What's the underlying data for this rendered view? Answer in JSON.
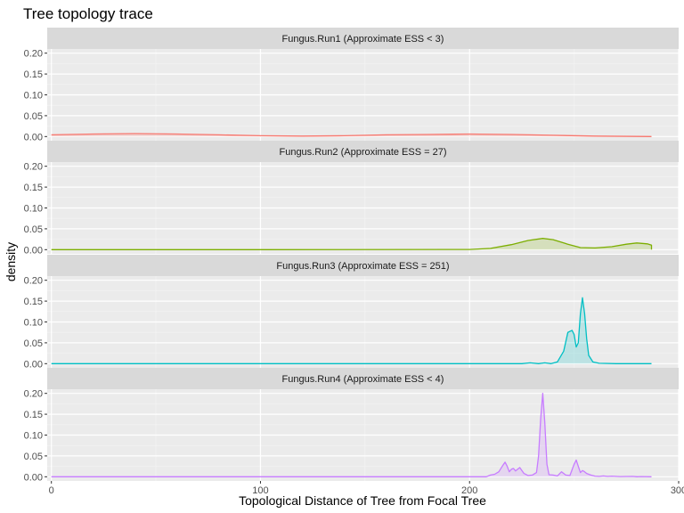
{
  "chart_data": {
    "type": "area",
    "title": "Tree topology trace",
    "xlabel": "Topological Distance of Tree from Focal Tree",
    "ylabel": "density",
    "xlim": [
      -2,
      300
    ],
    "ylim": [
      -0.01,
      0.21
    ],
    "x_ticks": [
      0,
      100,
      200,
      300
    ],
    "y_ticks": [
      0.0,
      0.05,
      0.1,
      0.15,
      0.2
    ],
    "y_tick_labels": [
      "0.00",
      "0.05",
      "0.10",
      "0.15",
      "0.20"
    ],
    "grid": true,
    "legend": "none",
    "panels": [
      {
        "name": "Fungus.Run1",
        "strip": "Fungus.Run1 (Approximate ESS < 3)",
        "color": "#F8766D",
        "fill": "rgba(248,118,109,0.2)",
        "x": [
          0,
          20,
          40,
          60,
          80,
          100,
          120,
          140,
          160,
          180,
          200,
          220,
          240,
          260,
          287
        ],
        "y": [
          0.004,
          0.006,
          0.007,
          0.006,
          0.004,
          0.002,
          0.001,
          0.002,
          0.004,
          0.005,
          0.006,
          0.005,
          0.003,
          0.001,
          0.0
        ]
      },
      {
        "name": "Fungus.Run2",
        "strip": "Fungus.Run2 (Approximate ESS = 27)",
        "color": "#7CAE00",
        "fill": "rgba(124,174,0,0.2)",
        "x": [
          0,
          100,
          200,
          210,
          220,
          228,
          235,
          240,
          247,
          253,
          260,
          268,
          275,
          280,
          285,
          287,
          287
        ],
        "y": [
          0.0,
          0.0,
          0.0005,
          0.003,
          0.012,
          0.022,
          0.027,
          0.024,
          0.013,
          0.005,
          0.004,
          0.007,
          0.013,
          0.016,
          0.014,
          0.011,
          0.0
        ]
      },
      {
        "name": "Fungus.Run3",
        "strip": "Fungus.Run3 (Approximate ESS = 251)",
        "color": "#00BFC4",
        "fill": "rgba(0,191,196,0.2)",
        "x": [
          0,
          200,
          225,
          229,
          233,
          236,
          239,
          242,
          245,
          247,
          249,
          250,
          251,
          252,
          253,
          254,
          255,
          256,
          257,
          259,
          262,
          270,
          287
        ],
        "y": [
          0.0,
          0.0,
          0.0,
          0.002,
          0.0,
          0.002,
          0.0,
          0.004,
          0.03,
          0.075,
          0.08,
          0.07,
          0.04,
          0.05,
          0.12,
          0.158,
          0.12,
          0.06,
          0.02,
          0.004,
          0.001,
          0.0,
          0.0
        ]
      },
      {
        "name": "Fungus.Run4",
        "strip": "Fungus.Run4 (Approximate ESS < 4)",
        "color": "#C77CFF",
        "fill": "rgba(199,124,255,0.2)",
        "x": [
          0,
          200,
          208,
          210,
          212,
          214,
          216,
          217,
          218,
          219,
          220,
          221,
          222,
          223,
          224,
          226,
          228,
          230,
          232,
          233,
          234,
          235,
          236,
          237,
          238,
          240,
          242,
          244,
          246,
          248,
          250,
          251,
          252,
          253,
          254,
          255,
          256,
          258,
          260,
          262,
          264,
          266,
          268,
          272,
          278,
          280,
          282,
          287
        ],
        "y": [
          0.0,
          0.0,
          0.0,
          0.004,
          0.006,
          0.012,
          0.028,
          0.035,
          0.025,
          0.012,
          0.018,
          0.02,
          0.014,
          0.018,
          0.022,
          0.008,
          0.003,
          0.004,
          0.01,
          0.05,
          0.14,
          0.2,
          0.13,
          0.03,
          0.005,
          0.004,
          0.002,
          0.012,
          0.004,
          0.003,
          0.03,
          0.04,
          0.025,
          0.01,
          0.015,
          0.012,
          0.008,
          0.004,
          0.0015,
          0.001,
          0.002,
          0.001,
          0.0015,
          0.0005,
          0.001,
          0.0,
          0.0005,
          0.0
        ]
      }
    ]
  }
}
